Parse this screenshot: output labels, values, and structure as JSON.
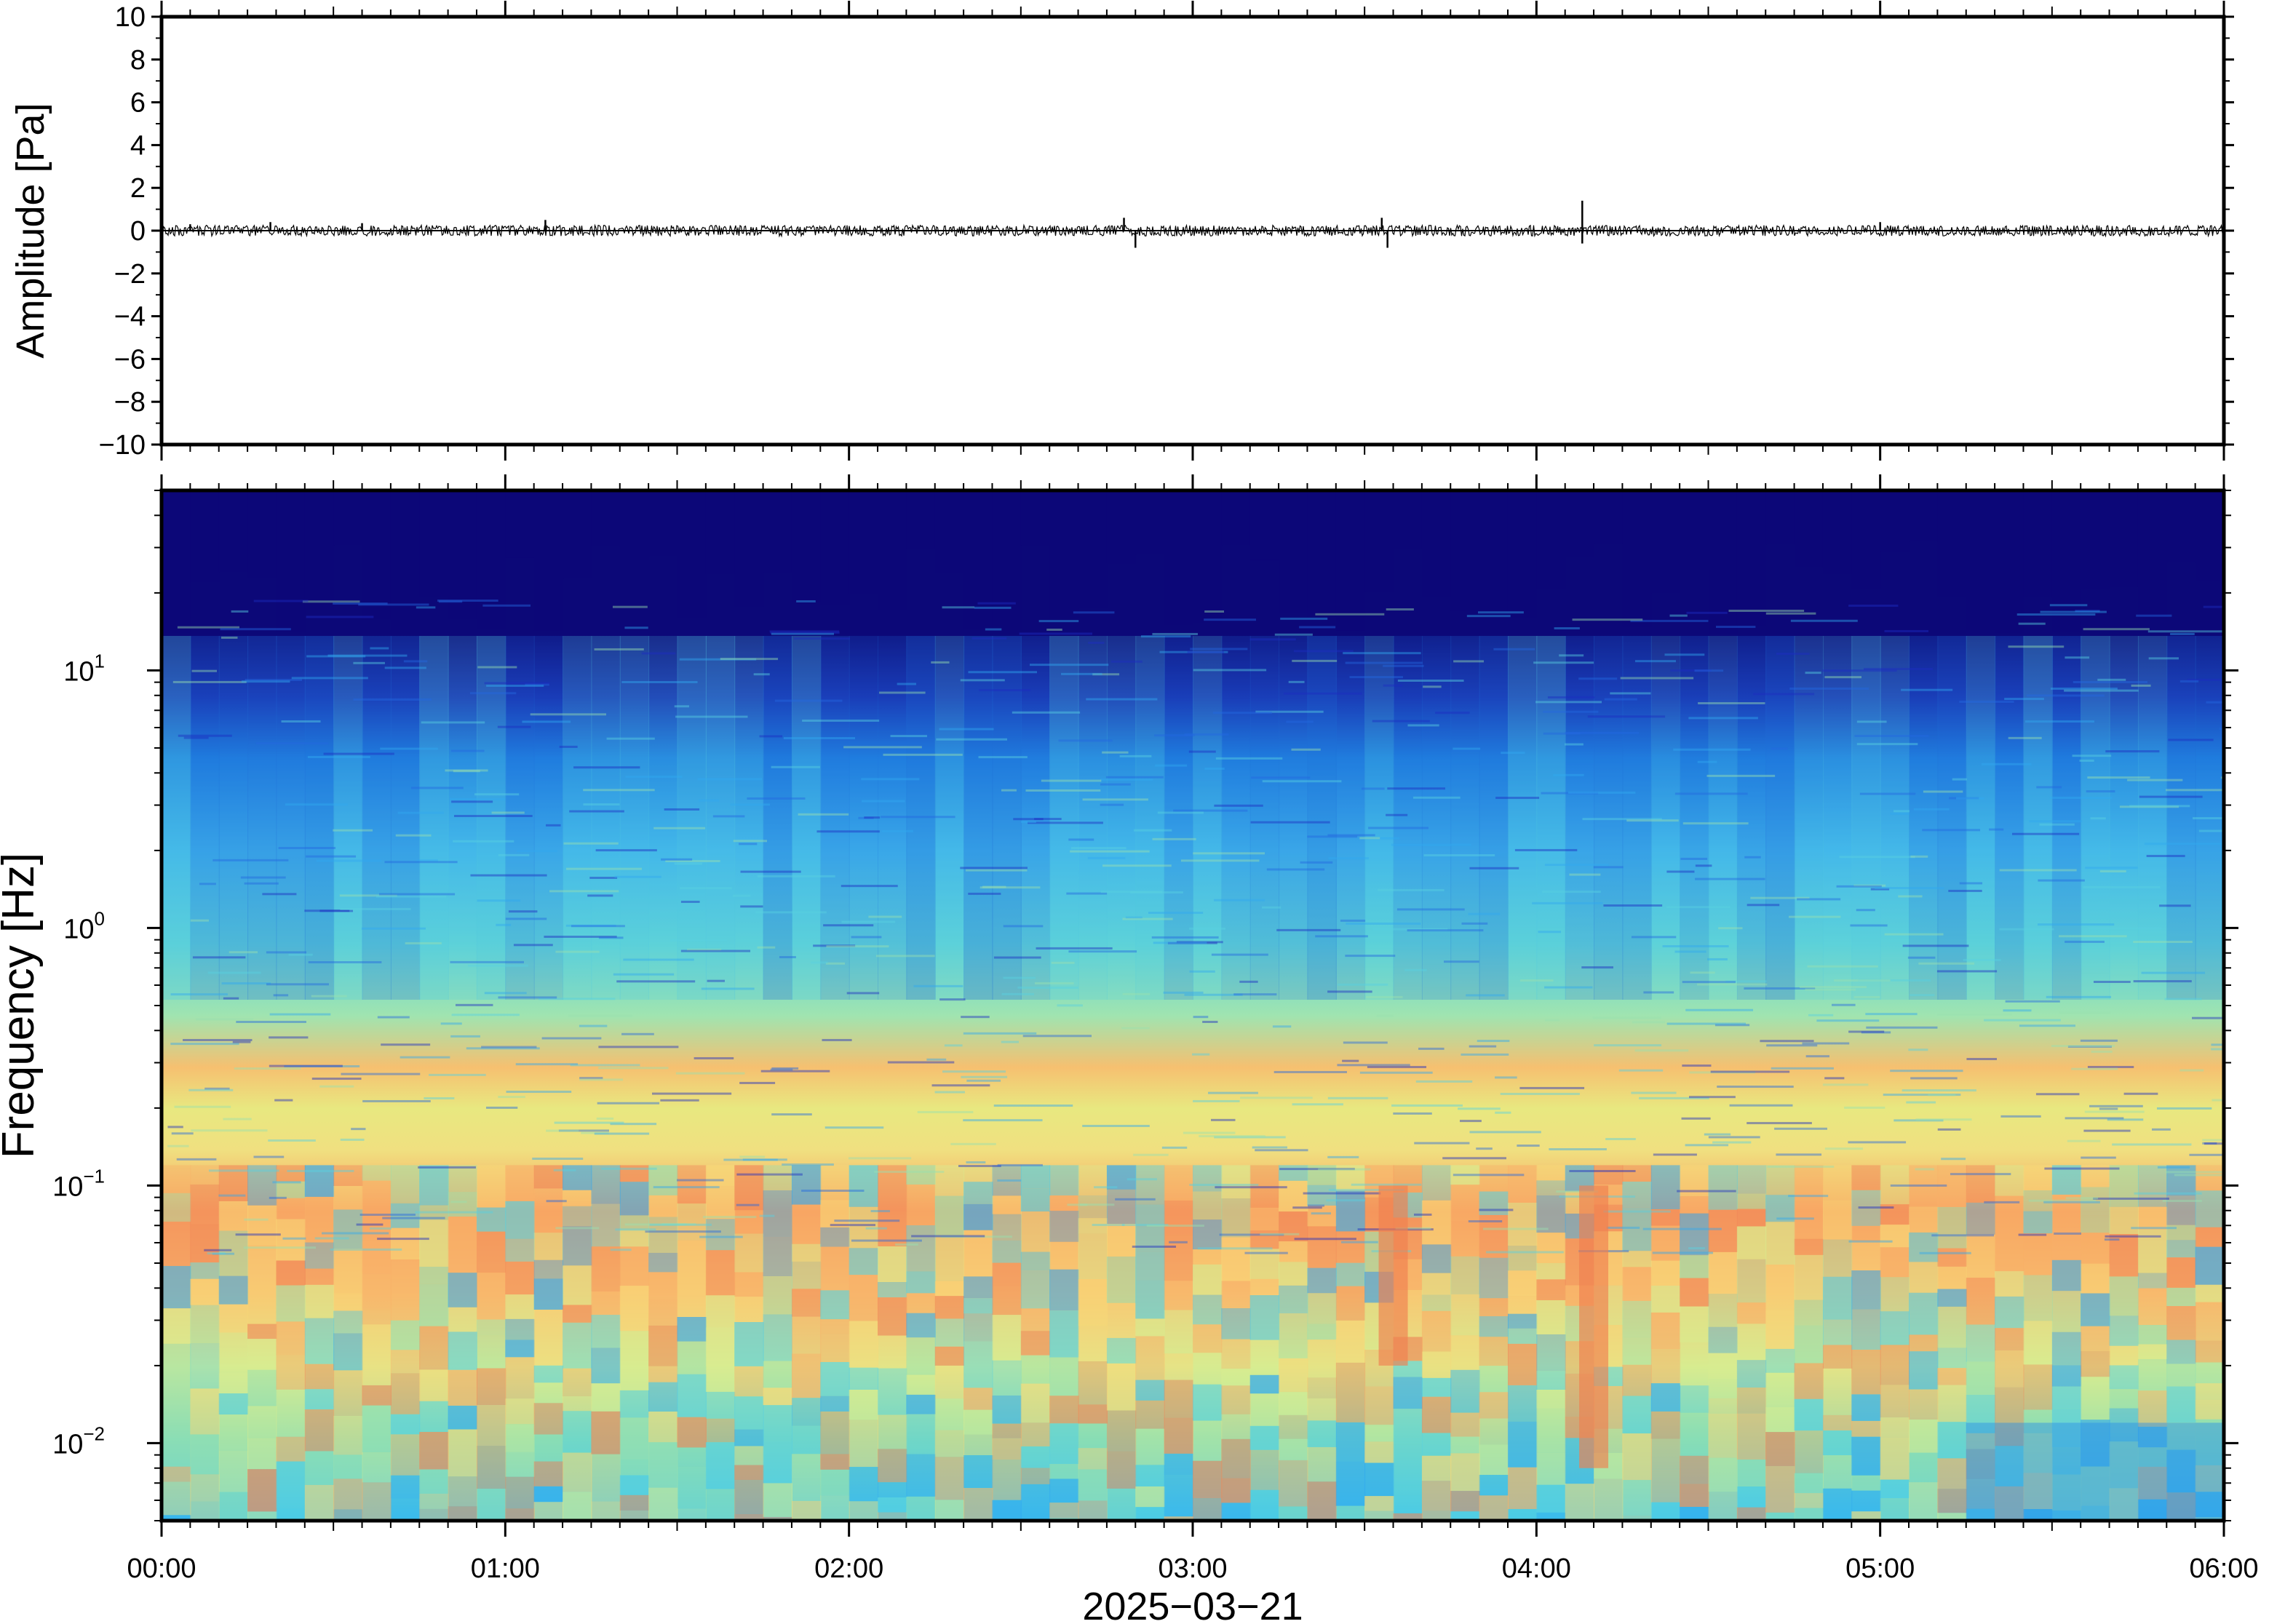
{
  "chart_data": [
    {
      "type": "line",
      "title": "",
      "xlabel": "",
      "ylabel": "Amplitude [Pa]",
      "xlim": [
        "00:00",
        "06:00"
      ],
      "ylim": [
        -10,
        10
      ],
      "yticks": [
        -10,
        -8,
        -6,
        -4,
        -2,
        0,
        2,
        4,
        6,
        8,
        10
      ],
      "ytick_labels": [
        "−10",
        "−8",
        "−6",
        "−4",
        "−2",
        "0",
        "2",
        "4",
        "6",
        "8",
        "10"
      ],
      "grid": false,
      "series": [
        {
          "color": "#000000",
          "baseline": 0,
          "typical_envelope_pa": 0.25,
          "peaks": [
            {
              "time": "00:05",
              "amplitude": 0.3
            },
            {
              "time": "00:19",
              "amplitude": 0.4
            },
            {
              "time": "00:35",
              "amplitude": 0.35
            },
            {
              "time": "01:07",
              "amplitude": 0.5
            },
            {
              "time": "02:48",
              "amplitude": 0.6
            },
            {
              "time": "02:50",
              "amplitude": -0.8
            },
            {
              "time": "03:33",
              "amplitude": 0.6
            },
            {
              "time": "03:34",
              "amplitude": -0.8
            },
            {
              "time": "04:08",
              "amplitude": 1.4
            },
            {
              "time": "04:08",
              "amplitude": -0.6
            },
            {
              "time": "05:00",
              "amplitude": 0.4
            }
          ]
        }
      ]
    },
    {
      "type": "heatmap",
      "title": "",
      "xlabel": "2025−03−21",
      "ylabel": "Frequency [Hz]",
      "xlim": [
        "00:00",
        "06:00"
      ],
      "ylim": [
        0.005,
        50
      ],
      "yscale": "log",
      "yticks": [
        {
          "base": "10",
          "exp": "−2",
          "value": 0.01
        },
        {
          "base": "10",
          "exp": "−1",
          "value": 0.1
        },
        {
          "base": "10",
          "exp": "0",
          "value": 1
        },
        {
          "base": "10",
          "exp": "1",
          "value": 10
        }
      ],
      "xticks": [
        "00:00",
        "01:00",
        "02:00",
        "03:00",
        "04:00",
        "05:00",
        "06:00"
      ],
      "colormap": "jet",
      "colorbar": false,
      "features": {
        "high_energy_band_hz": [
          0.02,
          0.1
        ],
        "secondary_band_hz": [
          0.15,
          0.3
        ],
        "low_energy_above_hz": 10,
        "notable_events": [
          {
            "time": "03:35",
            "freq_range_hz": [
              0.02,
              0.1
            ]
          },
          {
            "time": "04:10",
            "freq_range_hz": [
              0.008,
              0.1
            ]
          }
        ]
      }
    }
  ]
}
